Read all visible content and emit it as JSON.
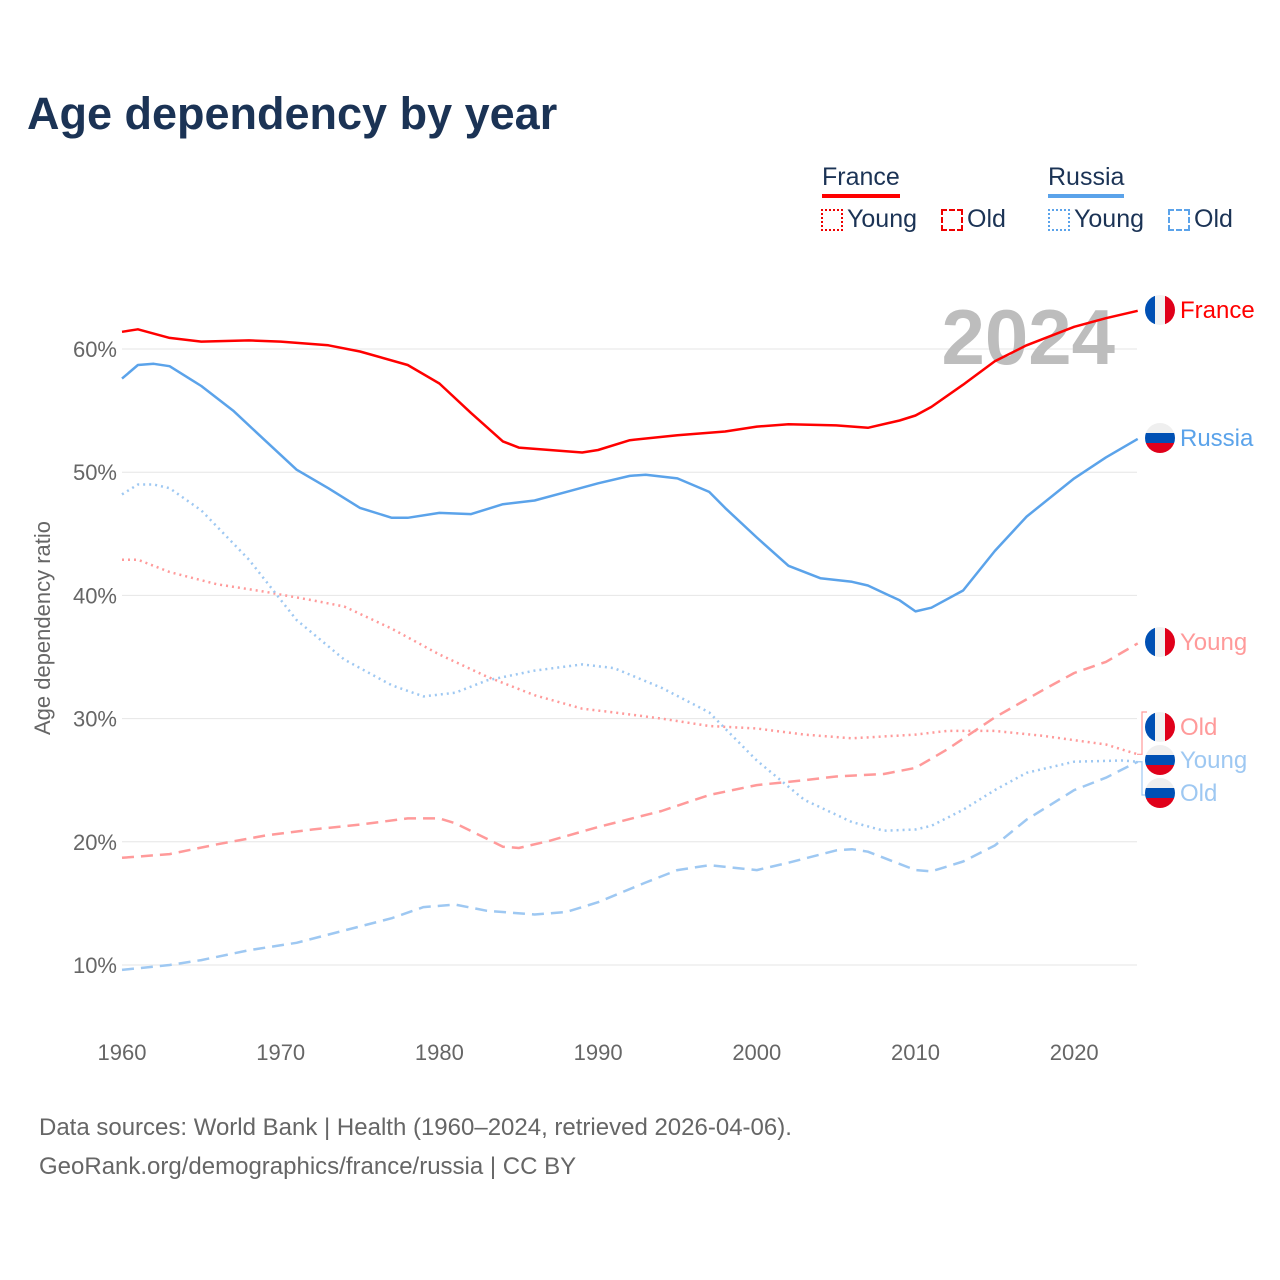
{
  "title": "Age dependency by year",
  "legend": {
    "france": {
      "label": "France",
      "young": "Young",
      "old": "Old"
    },
    "russia": {
      "label": "Russia",
      "young": "Young",
      "old": "Old"
    }
  },
  "footer": {
    "line1": "Data sources: World Bank | Health (1960–2024, retrieved 2026-04-06).",
    "line2": "GeoRank.org/demographics/france/russia | CC BY"
  },
  "colors": {
    "france": "#ff0000",
    "france_light": "#ff9a9a",
    "russia": "#5ba3ea",
    "russia_light": "#9ec8f2",
    "title": "#1b3355"
  },
  "chart_data": {
    "type": "line",
    "title": "Age dependency by year",
    "ylabel": "Age dependency ratio",
    "xlabel": "",
    "xlim": [
      1960,
      2024
    ],
    "ylim": [
      5,
      66
    ],
    "x_ticks": [
      1960,
      1970,
      1980,
      1990,
      2000,
      2010,
      2020
    ],
    "y_ticks": [
      10,
      20,
      30,
      40,
      50,
      60
    ],
    "y_tick_labels": [
      "10%",
      "20%",
      "30%",
      "40%",
      "50%",
      "60%"
    ],
    "x_tick_labels": [
      "1960",
      "1970",
      "1980",
      "1990",
      "2000",
      "2010",
      "2020"
    ],
    "year_watermark": "2024",
    "grid": true,
    "legend_position": "top-right",
    "series": [
      {
        "name": "France",
        "end_label": "France",
        "flag": "france",
        "style": "solid",
        "color": "#ff0000",
        "x": [
          1960,
          1961,
          1963,
          1965,
          1968,
          1970,
          1973,
          1975,
          1978,
          1980,
          1982,
          1984,
          1985,
          1989,
          1990,
          1992,
          1995,
          1998,
          2000,
          2002,
          2005,
          2007,
          2009,
          2010,
          2011,
          2013,
          2015,
          2017,
          2020,
          2022,
          2024
        ],
        "y": [
          61.4,
          61.6,
          60.9,
          60.6,
          60.7,
          60.6,
          60.3,
          59.8,
          58.7,
          57.2,
          54.8,
          52.5,
          52.0,
          51.6,
          51.8,
          52.6,
          53.0,
          53.3,
          53.7,
          53.9,
          53.8,
          53.6,
          54.2,
          54.6,
          55.3,
          57.1,
          59.0,
          60.3,
          61.8,
          62.5,
          63.1
        ]
      },
      {
        "name": "Russia",
        "end_label": "Russia",
        "flag": "russia",
        "style": "solid",
        "color": "#5ba3ea",
        "x": [
          1960,
          1961,
          1962,
          1963,
          1965,
          1967,
          1969,
          1971,
          1973,
          1975,
          1977,
          1978,
          1980,
          1982,
          1984,
          1986,
          1988,
          1990,
          1992,
          1993,
          1995,
          1997,
          1998,
          2000,
          2002,
          2004,
          2006,
          2007,
          2009,
          2010,
          2011,
          2013,
          2015,
          2017,
          2020,
          2022,
          2024
        ],
        "y": [
          57.6,
          58.7,
          58.8,
          58.6,
          57.0,
          55.0,
          52.6,
          50.2,
          48.7,
          47.1,
          46.3,
          46.3,
          46.7,
          46.6,
          47.4,
          47.7,
          48.4,
          49.1,
          49.7,
          49.8,
          49.5,
          48.4,
          47.1,
          44.7,
          42.4,
          41.4,
          41.1,
          40.8,
          39.6,
          38.7,
          39.0,
          40.4,
          43.6,
          46.4,
          49.5,
          51.2,
          52.7
        ]
      },
      {
        "name": "France Young",
        "end_label": "Young",
        "flag": "france",
        "style": "dotted",
        "color": "#ff9a9a",
        "x": [
          1960,
          1961,
          1963,
          1966,
          1969,
          1972,
          1974,
          1977,
          1980,
          1983,
          1986,
          1989,
          1991,
          1994,
          1997,
          2000,
          2003,
          2006,
          2010,
          2012,
          2015,
          2018,
          2022,
          2024
        ],
        "y": [
          42.9,
          42.9,
          41.9,
          40.9,
          40.3,
          39.6,
          39.1,
          37.3,
          35.2,
          33.4,
          31.9,
          30.8,
          30.5,
          30.0,
          29.4,
          29.2,
          28.7,
          28.4,
          28.7,
          29.0,
          29.0,
          28.6,
          27.9,
          27.1
        ]
      },
      {
        "name": "France Old",
        "end_label": "Old",
        "flag": "france",
        "style": "dashed",
        "color": "#ff9a9a",
        "x": [
          1960,
          1963,
          1966,
          1969,
          1972,
          1975,
          1978,
          1980,
          1981,
          1984,
          1985,
          1987,
          1990,
          1994,
          1997,
          2000,
          2003,
          2005,
          2008,
          2010,
          2012,
          2015,
          2018,
          2020,
          2022,
          2024
        ],
        "y": [
          18.7,
          19.0,
          19.8,
          20.5,
          21.0,
          21.4,
          21.9,
          21.9,
          21.5,
          19.6,
          19.5,
          20.1,
          21.2,
          22.5,
          23.8,
          24.6,
          25.0,
          25.3,
          25.5,
          26.0,
          27.5,
          30.1,
          32.3,
          33.7,
          34.6,
          36.1
        ]
      },
      {
        "name": "Russia Young",
        "end_label": "Young",
        "flag": "russia",
        "style": "dotted",
        "color": "#9ec8f2",
        "x": [
          1960,
          1961,
          1962,
          1963,
          1965,
          1968,
          1971,
          1974,
          1977,
          1979,
          1981,
          1983,
          1986,
          1989,
          1991,
          1994,
          1997,
          1998,
          2000,
          2003,
          2006,
          2008,
          2010,
          2011,
          2013,
          2015,
          2017,
          2020,
          2023,
          2024
        ],
        "y": [
          48.2,
          49.0,
          49.0,
          48.7,
          46.9,
          42.9,
          38.0,
          34.8,
          32.7,
          31.8,
          32.1,
          33.1,
          33.9,
          34.4,
          34.1,
          32.5,
          30.5,
          29.2,
          26.6,
          23.4,
          21.6,
          20.9,
          21.0,
          21.3,
          22.6,
          24.2,
          25.6,
          26.5,
          26.6,
          26.5
        ]
      },
      {
        "name": "Russia Old",
        "end_label": "Old",
        "flag": "russia",
        "style": "dashed",
        "color": "#9ec8f2",
        "x": [
          1960,
          1963,
          1965,
          1968,
          1971,
          1974,
          1977,
          1979,
          1981,
          1983,
          1986,
          1988,
          1990,
          1993,
          1995,
          1997,
          2000,
          2002,
          2005,
          2006,
          2007,
          2010,
          2011,
          2013,
          2015,
          2017,
          2020,
          2022,
          2024
        ],
        "y": [
          9.6,
          10.0,
          10.4,
          11.2,
          11.8,
          12.8,
          13.8,
          14.7,
          14.9,
          14.4,
          14.1,
          14.3,
          15.1,
          16.7,
          17.7,
          18.1,
          17.7,
          18.3,
          19.3,
          19.4,
          19.2,
          17.7,
          17.6,
          18.4,
          19.7,
          21.8,
          24.2,
          25.2,
          26.5
        ]
      }
    ]
  }
}
